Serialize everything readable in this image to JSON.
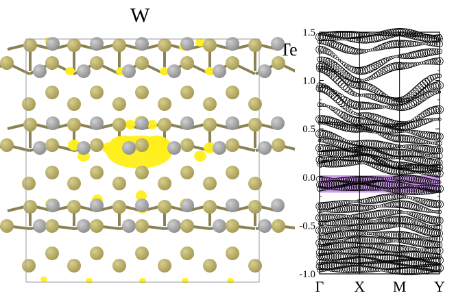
{
  "structure_panel": {
    "element_labels": {
      "metal": "W",
      "chalcogen": "Te"
    },
    "colors": {
      "te_atom": "#a39852",
      "w_atom": "#8c8c8c",
      "charge_density": "#ffef1a",
      "cell_outline": "#9a9a9a"
    }
  },
  "chart_data": {
    "type": "scatter",
    "title": "",
    "xlabel": "",
    "ylabel": "",
    "x_ticks": [
      "Γ",
      "X",
      "M",
      "Y"
    ],
    "y_ticks": [
      "-1.0",
      "-0.5",
      "0.0",
      "0.5",
      "1.0",
      "1.5"
    ],
    "ylim": [
      -1.0,
      1.5
    ],
    "highlight_band": {
      "from": -0.16,
      "to": 0.02,
      "color": "#c58be8"
    },
    "bands": [
      {
        "values": [
          1.48,
          1.47,
          1.5,
          1.45
        ]
      },
      {
        "values": [
          1.45,
          1.42,
          1.47,
          1.43
        ]
      },
      {
        "values": [
          1.4,
          1.3,
          1.38,
          1.38
        ]
      },
      {
        "values": [
          1.32,
          1.1,
          1.25,
          1.3
        ]
      },
      {
        "values": [
          1.22,
          1.0,
          1.15,
          1.2
        ]
      },
      {
        "values": [
          1.15,
          0.95,
          0.8,
          1.05
        ]
      },
      {
        "values": [
          1.12,
          0.85,
          0.78,
          0.95
        ]
      },
      {
        "values": [
          0.95,
          0.74,
          0.72,
          0.88
        ]
      },
      {
        "values": [
          0.92,
          0.65,
          0.55,
          0.7
        ]
      },
      {
        "values": [
          0.75,
          0.58,
          0.52,
          0.6
        ]
      },
      {
        "values": [
          0.6,
          0.52,
          0.48,
          0.42
        ]
      },
      {
        "values": [
          0.56,
          0.5,
          0.4,
          0.35
        ]
      },
      {
        "values": [
          0.45,
          0.35,
          0.32,
          0.28
        ]
      },
      {
        "values": [
          0.38,
          0.3,
          0.25,
          0.22
        ]
      },
      {
        "values": [
          0.3,
          0.28,
          0.2,
          0.15
        ]
      },
      {
        "values": [
          0.25,
          0.24,
          0.12,
          0.1
        ]
      },
      {
        "values": [
          0.18,
          0.2,
          0.1,
          0.08
        ]
      },
      {
        "values": [
          0.14,
          0.15,
          0.06,
          0.04
        ]
      },
      {
        "values": [
          -0.02,
          -0.03,
          -0.01,
          -0.05
        ]
      },
      {
        "values": [
          -0.08,
          -0.06,
          -0.08,
          -0.12
        ]
      },
      {
        "values": [
          -0.12,
          -0.1,
          -0.14,
          -0.15
        ]
      },
      {
        "values": [
          -0.3,
          -0.25,
          -0.2,
          -0.28
        ]
      },
      {
        "values": [
          -0.35,
          -0.32,
          -0.28,
          -0.36
        ]
      },
      {
        "values": [
          -0.42,
          -0.4,
          -0.36,
          -0.45
        ]
      },
      {
        "values": [
          -0.48,
          -0.46,
          -0.44,
          -0.52
        ]
      },
      {
        "values": [
          -0.55,
          -0.52,
          -0.5,
          -0.58
        ]
      },
      {
        "values": [
          -0.62,
          -0.58,
          -0.6,
          -0.64
        ]
      },
      {
        "values": [
          -0.68,
          -0.65,
          -0.66,
          -0.7
        ]
      },
      {
        "values": [
          -0.72,
          -0.7,
          -0.74,
          -0.76
        ]
      },
      {
        "values": [
          -0.78,
          -0.76,
          -0.8,
          -0.82
        ]
      },
      {
        "values": [
          -0.82,
          -0.82,
          -0.84,
          -0.86
        ]
      },
      {
        "values": [
          -0.88,
          -0.86,
          -0.88,
          -0.9
        ]
      },
      {
        "values": [
          -0.92,
          -0.9,
          -0.92,
          -0.94
        ]
      },
      {
        "values": [
          -0.96,
          -0.95,
          -0.97,
          -0.97
        ]
      }
    ]
  }
}
